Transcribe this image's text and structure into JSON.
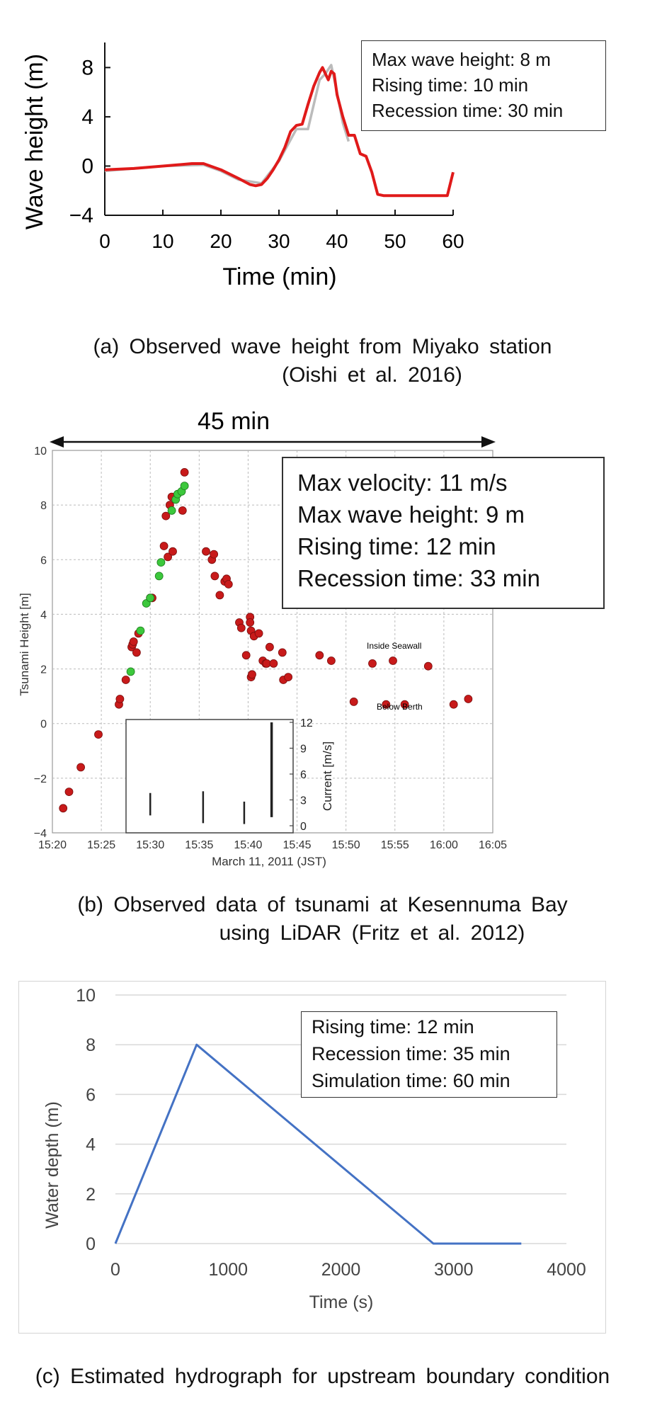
{
  "chart_data": [
    {
      "type": "line",
      "ylabel": "Wave height (m)",
      "xlabel": "Time (min)",
      "xlim": [
        0,
        60
      ],
      "ylim": [
        -4,
        9
      ],
      "x_ticks": [
        "0",
        "10",
        "20",
        "30",
        "40",
        "50",
        "60"
      ],
      "y_ticks": [
        "8",
        "4",
        "0",
        "−4"
      ],
      "annotations": [
        "Max wave height: 8 m",
        "Rising time: 10 min",
        "Recession time: 30 min"
      ],
      "series": [
        {
          "color": "#e01a1a",
          "x": [
            0,
            5,
            10,
            15,
            17,
            20,
            23,
            25,
            26,
            27,
            28,
            29,
            30,
            31,
            32,
            33,
            34,
            35,
            36,
            37,
            37.5,
            38,
            38.5,
            39,
            39.5,
            40,
            41,
            42,
            43,
            44,
            45,
            46,
            47,
            48,
            50,
            55,
            59,
            60
          ],
          "y": [
            -0.3,
            -0.2,
            0,
            0.2,
            0.2,
            -0.3,
            -1.0,
            -1.5,
            -1.6,
            -1.5,
            -1.0,
            -0.3,
            0.5,
            1.5,
            2.8,
            3.3,
            3.4,
            5.0,
            6.5,
            7.6,
            8.0,
            7.5,
            7.0,
            7.7,
            7.5,
            5.8,
            4.0,
            2.5,
            2.5,
            1.0,
            0.8,
            -0.5,
            -2.3,
            -2.4,
            -2.4,
            -2.4,
            -2.4,
            -0.5
          ]
        },
        {
          "color": "#bbbbbb",
          "x": [
            0,
            10,
            17,
            20,
            23,
            27,
            30,
            33,
            35,
            36,
            37,
            38,
            39,
            40,
            41,
            42
          ],
          "y": [
            -0.4,
            0,
            0.1,
            -0.4,
            -1.1,
            -1.4,
            0.4,
            3.0,
            3.0,
            5.0,
            7.0,
            7.5,
            8.2,
            6.0,
            3.5,
            2.0
          ]
        }
      ]
    },
    {
      "type": "scatter",
      "ylabel": "Tsunami Height [m]",
      "xlabel": "March 11, 2011 (JST)",
      "ylim": [
        -4,
        10
      ],
      "x_ticks": [
        "15:20",
        "15:25",
        "15:30",
        "15:35",
        "15:40",
        "15:45",
        "15:50",
        "15:55",
        "16:00",
        "16:05"
      ],
      "y_ticks": [
        "10",
        "8",
        "6",
        "4",
        "2",
        "0",
        "−2",
        "−4"
      ],
      "duration_label": "45 min",
      "annotations": [
        "Max velocity: 11 m/s",
        "Max wave height: 9 m",
        "Rising time: 12 min",
        "Recession time: 33 min"
      ],
      "region_labels": [
        "Inside Seawall",
        "Below Berth"
      ],
      "series": [
        {
          "color": "#c81a1a",
          "points": [
            [
              21.1,
              -3.1
            ],
            [
              21.7,
              -2.5
            ],
            [
              22.9,
              -1.6
            ],
            [
              24.7,
              -0.4
            ],
            [
              26.8,
              0.7
            ],
            [
              26.9,
              0.9
            ],
            [
              27.5,
              1.6
            ],
            [
              28.1,
              2.8
            ],
            [
              28.2,
              2.9
            ],
            [
              28.3,
              3.0
            ],
            [
              28.6,
              2.6
            ],
            [
              28.8,
              3.3
            ],
            [
              30.0,
              4.6
            ],
            [
              30.2,
              4.6
            ],
            [
              31.4,
              6.5
            ],
            [
              31.6,
              7.6
            ],
            [
              31.8,
              6.1
            ],
            [
              32.0,
              8.0
            ],
            [
              32.2,
              8.3
            ],
            [
              32.3,
              6.3
            ],
            [
              33.3,
              7.8
            ],
            [
              33.5,
              9.2
            ],
            [
              35.7,
              6.3
            ],
            [
              36.3,
              6.0
            ],
            [
              36.5,
              6.2
            ],
            [
              36.6,
              5.4
            ],
            [
              37.1,
              4.7
            ],
            [
              37.6,
              5.2
            ],
            [
              37.8,
              5.3
            ],
            [
              38.0,
              5.1
            ],
            [
              39.1,
              3.7
            ],
            [
              39.3,
              3.5
            ],
            [
              39.8,
              2.5
            ],
            [
              40.2,
              3.9
            ],
            [
              40.2,
              3.7
            ],
            [
              40.3,
              3.4
            ],
            [
              40.3,
              1.7
            ],
            [
              40.4,
              1.8
            ],
            [
              40.6,
              3.2
            ],
            [
              41.1,
              3.3
            ],
            [
              41.5,
              2.3
            ],
            [
              41.8,
              2.2
            ],
            [
              41.9,
              2.2
            ],
            [
              42.2,
              2.8
            ],
            [
              42.6,
              2.2
            ],
            [
              43.5,
              2.6
            ],
            [
              43.6,
              1.6
            ],
            [
              44.1,
              1.7
            ],
            [
              47.3,
              2.5
            ],
            [
              48.5,
              2.3
            ],
            [
              50.8,
              0.8
            ],
            [
              52.7,
              2.2
            ],
            [
              54.1,
              0.7
            ],
            [
              54.8,
              2.3
            ],
            [
              56.0,
              0.7
            ],
            [
              58.4,
              2.1
            ],
            [
              61.0,
              0.7
            ],
            [
              62.5,
              0.9
            ]
          ]
        },
        {
          "color": "#3cc83c",
          "points": [
            [
              28.0,
              1.9
            ],
            [
              29.0,
              3.4
            ],
            [
              29.6,
              4.4
            ],
            [
              30.0,
              4.6
            ],
            [
              30.9,
              5.4
            ],
            [
              31.1,
              5.9
            ],
            [
              32.2,
              7.8
            ],
            [
              32.6,
              8.2
            ],
            [
              32.8,
              8.4
            ],
            [
              33.2,
              8.5
            ],
            [
              33.5,
              8.7
            ]
          ]
        }
      ],
      "inset": {
        "ylabel": "Current [m/s]",
        "ylim": [
          0,
          12
        ],
        "y_ticks": [
          "12",
          "9",
          "6",
          "3",
          "0"
        ],
        "bars": [
          [
            30.0,
            1.2,
            3.8
          ],
          [
            35.4,
            0.3,
            4.0
          ],
          [
            39.6,
            0.2,
            2.8
          ],
          [
            42.4,
            1.0,
            12.0
          ]
        ]
      }
    },
    {
      "type": "line",
      "ylabel": "Water depth (m)",
      "xlabel": "Time (s)",
      "xlim": [
        0,
        4000
      ],
      "ylim": [
        0,
        10
      ],
      "x_ticks": [
        "0",
        "1000",
        "2000",
        "3000",
        "4000"
      ],
      "y_ticks": [
        "10",
        "8",
        "6",
        "4",
        "2",
        "0"
      ],
      "annotations": [
        "Rising time: 12 min",
        "Recession time: 35 min",
        "Simulation time: 60 min"
      ],
      "series": [
        {
          "color": "#4472c4",
          "x": [
            0,
            720,
            2820,
            3600
          ],
          "y": [
            0,
            8,
            0,
            0
          ]
        }
      ]
    }
  ],
  "captions": {
    "a_line1": "(a) Observed wave height from Miyako station",
    "a_line2": "(Oishi et al. 2016)",
    "b_line1": "(b) Observed data of tsunami at Kesennuma Bay",
    "b_line2": "using LiDAR (Fritz et al. 2012)",
    "c_line1": "(c) Estimated hydrograph for upstream boundary condition"
  }
}
